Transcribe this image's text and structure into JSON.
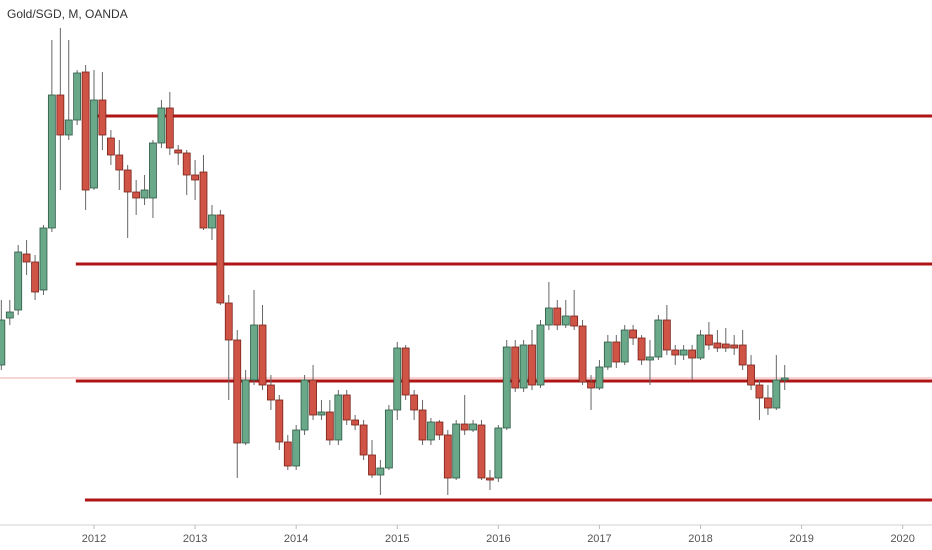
{
  "chart_data": {
    "type": "candlestick",
    "title": "Gold/SGD, M, OANDA",
    "x": [
      2011.083,
      2011.167,
      2011.25,
      2011.333,
      2011.417,
      2011.5,
      2011.583,
      2011.667,
      2011.75,
      2011.833,
      2011.917,
      2012,
      2012.083,
      2012.167,
      2012.25,
      2012.333,
      2012.417,
      2012.5,
      2012.583,
      2012.667,
      2012.75,
      2012.833,
      2012.917,
      2013,
      2013.083,
      2013.167,
      2013.25,
      2013.333,
      2013.417,
      2013.5,
      2013.583,
      2013.667,
      2013.75,
      2013.833,
      2013.917,
      2014,
      2014.083,
      2014.167,
      2014.25,
      2014.333,
      2014.417,
      2014.5,
      2014.583,
      2014.667,
      2014.75,
      2014.833,
      2014.917,
      2015,
      2015.083,
      2015.167,
      2015.25,
      2015.333,
      2015.417,
      2015.5,
      2015.583,
      2015.667,
      2015.75,
      2015.833,
      2015.917,
      2016,
      2016.083,
      2016.167,
      2016.25,
      2016.333,
      2016.417,
      2016.5,
      2016.583,
      2016.667,
      2016.75,
      2016.833,
      2016.917,
      2017,
      2017.083,
      2017.167,
      2017.25,
      2017.333,
      2017.417,
      2017.5,
      2017.583,
      2017.667,
      2017.75,
      2017.833,
      2017.917,
      2018,
      2018.083,
      2018.167,
      2018.25,
      2018.333,
      2018.417,
      2018.5,
      2018.583,
      2018.667,
      2018.75,
      2018.833
    ],
    "open": [
      160,
      207,
      215,
      271,
      263,
      235,
      297,
      430,
      390,
      405,
      453,
      337,
      425,
      387,
      370,
      355,
      333,
      327,
      327,
      382,
      417,
      375,
      372,
      350,
      353,
      297,
      310,
      222,
      185,
      82,
      145,
      200,
      140,
      125,
      83,
      59,
      95,
      145,
      110,
      113,
      85,
      130,
      105,
      100,
      70,
      50,
      57,
      115,
      177,
      130,
      115,
      85,
      103,
      90,
      47,
      101,
      95,
      100,
      47,
      47,
      97,
      178,
      137,
      180,
      140,
      200,
      217,
      200,
      209,
      199,
      143,
      137,
      158,
      183,
      163,
      195,
      187,
      165,
      168,
      205,
      175,
      170,
      175,
      167,
      190,
      182,
      181,
      180,
      180,
      160,
      140,
      127,
      117,
      145
    ],
    "high": [
      225,
      225,
      280,
      285,
      270,
      300,
      485,
      497,
      485,
      455,
      460,
      455,
      453,
      395,
      385,
      360,
      345,
      350,
      385,
      425,
      433,
      380,
      375,
      365,
      370,
      320,
      315,
      230,
      195,
      155,
      235,
      220,
      150,
      130,
      90,
      100,
      150,
      160,
      125,
      125,
      135,
      135,
      110,
      105,
      85,
      65,
      120,
      183,
      180,
      135,
      125,
      107,
      105,
      95,
      105,
      130,
      105,
      105,
      55,
      100,
      185,
      185,
      185,
      195,
      205,
      243,
      225,
      225,
      235,
      205,
      150,
      165,
      190,
      190,
      200,
      200,
      190,
      185,
      210,
      220,
      180,
      180,
      180,
      195,
      203,
      195,
      197,
      190,
      195,
      170,
      145,
      140,
      170,
      160
    ],
    "low": [
      155,
      200,
      210,
      250,
      225,
      230,
      293,
      335,
      385,
      400,
      315,
      335,
      375,
      360,
      335,
      287,
      310,
      320,
      307,
      377,
      370,
      360,
      330,
      325,
      295,
      285,
      220,
      125,
      47,
      80,
      140,
      135,
      115,
      75,
      55,
      55,
      90,
      105,
      105,
      80,
      80,
      100,
      95,
      65,
      47,
      30,
      55,
      105,
      125,
      105,
      80,
      80,
      85,
      30,
      45,
      90,
      93,
      45,
      35,
      43,
      95,
      133,
      133,
      135,
      137,
      195,
      195,
      197,
      195,
      140,
      115,
      135,
      155,
      157,
      160,
      180,
      160,
      140,
      165,
      170,
      160,
      165,
      145,
      165,
      175,
      173,
      173,
      170,
      155,
      135,
      105,
      110,
      115,
      135
    ],
    "close": [
      205,
      213,
      273,
      263,
      233,
      297,
      430,
      390,
      405,
      452,
      335,
      425,
      390,
      370,
      355,
      333,
      327,
      335,
      382,
      417,
      377,
      372,
      350,
      345,
      297,
      310,
      222,
      185,
      82,
      145,
      200,
      140,
      125,
      83,
      59,
      95,
      145,
      110,
      113,
      85,
      130,
      105,
      100,
      70,
      50,
      57,
      115,
      177,
      130,
      115,
      85,
      103,
      90,
      47,
      101,
      95,
      101,
      47,
      45,
      97,
      178,
      137,
      180,
      140,
      200,
      217,
      200,
      209,
      199,
      143,
      137,
      158,
      183,
      163,
      195,
      187,
      165,
      168,
      205,
      175,
      170,
      175,
      167,
      190,
      180,
      177,
      177,
      177,
      160,
      140,
      127,
      117,
      145,
      147
    ],
    "up_color": "#6aa88a",
    "down_color": "#cf5446",
    "ylim": [
      0,
      525
    ],
    "xlim": [
      2011.07,
      2020.29
    ],
    "xticks": [
      2012,
      2013,
      2014,
      2015,
      2016,
      2017,
      2018,
      2019,
      2020
    ],
    "levels": [
      {
        "value": 409,
        "start": 2012.01
      },
      {
        "value": 261,
        "start": 2011.82
      },
      {
        "value": 144,
        "start": 2011.82
      },
      {
        "value": 25,
        "start": 2011.91
      }
    ],
    "level_color": "#b01515",
    "last_price_color": "#f3a9a9"
  }
}
